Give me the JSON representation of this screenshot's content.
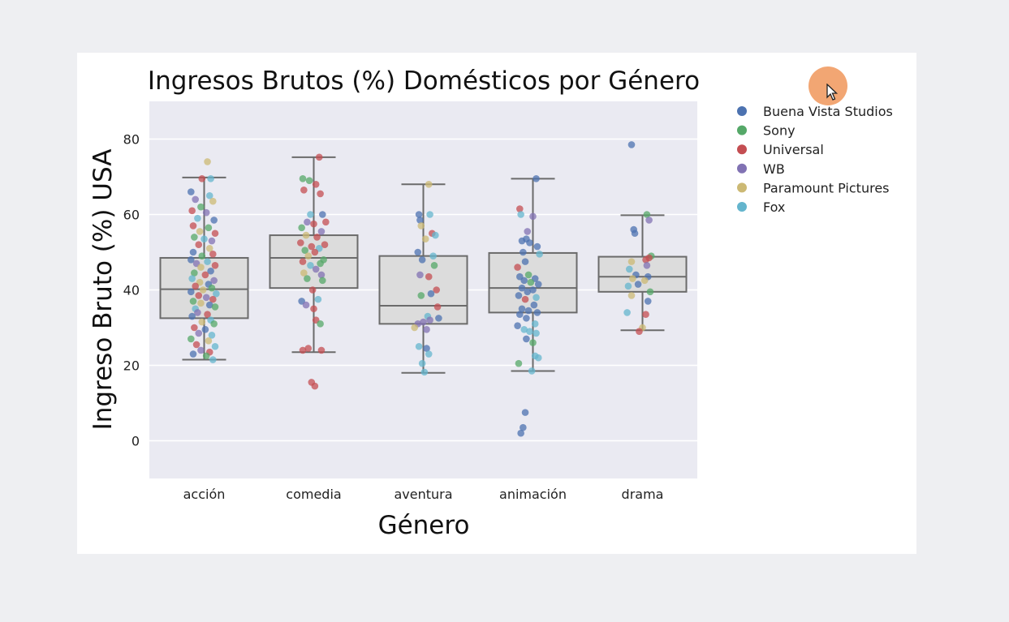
{
  "chart_data": {
    "type": "box+strip",
    "title": "Ingresos Brutos (%) Domésticos por Género",
    "xlabel": "Género",
    "ylabel": "Ingreso Bruto (%) USA",
    "categories": [
      "acción",
      "comedia",
      "aventura",
      "animación",
      "drama"
    ],
    "ylim": [
      -10,
      90
    ],
    "yticks": [
      0,
      20,
      40,
      60,
      80
    ],
    "grid": true,
    "legend": {
      "placement": "right",
      "entries": [
        {
          "name": "Buena Vista Studios",
          "color": "#4c72b0"
        },
        {
          "name": "Sony",
          "color": "#55a868"
        },
        {
          "name": "Universal",
          "color": "#c44e52"
        },
        {
          "name": "WB",
          "color": "#8172b3"
        },
        {
          "name": "Paramount Pictures",
          "color": "#ccb974"
        },
        {
          "name": "Fox",
          "color": "#64b5cd"
        }
      ]
    },
    "boxes": [
      {
        "category": "acción",
        "whisker_low": 21.5,
        "q1": 32.5,
        "median": 40.2,
        "q3": 48.5,
        "whisker_high": 69.8
      },
      {
        "category": "comedia",
        "whisker_low": 23.5,
        "q1": 40.5,
        "median": 48.5,
        "q3": 54.5,
        "whisker_high": 75.2
      },
      {
        "category": "aventura",
        "whisker_low": 18.0,
        "q1": 31.0,
        "median": 35.8,
        "q3": 49.0,
        "whisker_high": 68.0
      },
      {
        "category": "animación",
        "whisker_low": 18.5,
        "q1": 34.0,
        "median": 40.5,
        "q3": 49.8,
        "whisker_high": 69.5
      },
      {
        "category": "drama",
        "whisker_low": 29.3,
        "q1": 39.5,
        "median": 43.5,
        "q3": 48.8,
        "whisker_high": 59.8
      }
    ],
    "points": {
      "acción": [
        [
          -0.12,
          66.0,
          "Buena Vista Studios"
        ],
        [
          0.03,
          74.0,
          "Paramount Pictures"
        ],
        [
          -0.02,
          69.5,
          "Universal"
        ],
        [
          0.06,
          69.5,
          "Fox"
        ],
        [
          -0.08,
          64.0,
          "WB"
        ],
        [
          0.05,
          65.0,
          "Fox"
        ],
        [
          -0.03,
          62.0,
          "Sony"
        ],
        [
          0.08,
          63.5,
          "Paramount Pictures"
        ],
        [
          -0.11,
          61.0,
          "Universal"
        ],
        [
          0.02,
          60.5,
          "WB"
        ],
        [
          -0.06,
          59.0,
          "Fox"
        ],
        [
          0.09,
          58.5,
          "Buena Vista Studios"
        ],
        [
          -0.1,
          57.0,
          "Universal"
        ],
        [
          0.04,
          56.5,
          "Sony"
        ],
        [
          -0.04,
          55.5,
          "Paramount Pictures"
        ],
        [
          0.1,
          55.0,
          "Universal"
        ],
        [
          -0.09,
          54.0,
          "Sony"
        ],
        [
          0.0,
          53.5,
          "Fox"
        ],
        [
          0.07,
          53.0,
          "WB"
        ],
        [
          -0.05,
          52.0,
          "Universal"
        ],
        [
          0.05,
          51.0,
          "Paramount Pictures"
        ],
        [
          -0.1,
          50.0,
          "Buena Vista Studios"
        ],
        [
          0.08,
          49.5,
          "Universal"
        ],
        [
          -0.02,
          49.0,
          "Sony"
        ],
        [
          -0.12,
          48.0,
          "Buena Vista Studios"
        ],
        [
          0.03,
          47.5,
          "Fox"
        ],
        [
          -0.07,
          47.0,
          "WB"
        ],
        [
          0.1,
          46.5,
          "Universal"
        ],
        [
          -0.03,
          46.0,
          "Paramount Pictures"
        ],
        [
          0.06,
          45.0,
          "Buena Vista Studios"
        ],
        [
          -0.09,
          44.5,
          "Sony"
        ],
        [
          0.01,
          44.0,
          "Universal"
        ],
        [
          -0.11,
          43.0,
          "Fox"
        ],
        [
          0.09,
          42.5,
          "WB"
        ],
        [
          -0.04,
          42.0,
          "Paramount Pictures"
        ],
        [
          0.04,
          41.5,
          "Buena Vista Studios"
        ],
        [
          -0.08,
          41.0,
          "Universal"
        ],
        [
          0.07,
          40.5,
          "Sony"
        ],
        [
          -0.01,
          40.0,
          "Paramount Pictures"
        ],
        [
          -0.12,
          39.5,
          "Buena Vista Studios"
        ],
        [
          0.11,
          39.0,
          "Fox"
        ],
        [
          -0.05,
          38.5,
          "Universal"
        ],
        [
          0.02,
          38.0,
          "WB"
        ],
        [
          -0.1,
          37.0,
          "Sony"
        ],
        [
          0.08,
          37.5,
          "Universal"
        ],
        [
          -0.03,
          36.5,
          "Paramount Pictures"
        ],
        [
          0.05,
          36.0,
          "Buena Vista Studios"
        ],
        [
          -0.08,
          35.0,
          "Fox"
        ],
        [
          0.1,
          35.5,
          "Sony"
        ],
        [
          -0.06,
          34.0,
          "WB"
        ],
        [
          0.03,
          33.5,
          "Universal"
        ],
        [
          -0.11,
          33.0,
          "Buena Vista Studios"
        ],
        [
          0.06,
          32.0,
          "Fox"
        ],
        [
          -0.02,
          31.5,
          "Paramount Pictures"
        ],
        [
          0.09,
          31.0,
          "Sony"
        ],
        [
          -0.09,
          30.0,
          "Universal"
        ],
        [
          0.01,
          29.5,
          "Buena Vista Studios"
        ],
        [
          -0.05,
          28.5,
          "WB"
        ],
        [
          0.07,
          28.0,
          "Fox"
        ],
        [
          -0.12,
          27.0,
          "Sony"
        ],
        [
          0.04,
          26.5,
          "Paramount Pictures"
        ],
        [
          -0.07,
          25.5,
          "Universal"
        ],
        [
          0.1,
          25.0,
          "Fox"
        ],
        [
          -0.03,
          24.0,
          "WB"
        ],
        [
          0.05,
          23.5,
          "Universal"
        ],
        [
          -0.1,
          23.0,
          "Buena Vista Studios"
        ],
        [
          0.02,
          22.5,
          "Sony"
        ],
        [
          0.08,
          21.5,
          "Fox"
        ]
      ],
      "comedia": [
        [
          0.05,
          75.2,
          "Universal"
        ],
        [
          -0.1,
          69.5,
          "Sony"
        ],
        [
          -0.04,
          69.0,
          "Sony"
        ],
        [
          0.02,
          68.0,
          "Universal"
        ],
        [
          -0.09,
          66.5,
          "Universal"
        ],
        [
          0.06,
          65.5,
          "Universal"
        ],
        [
          -0.03,
          60.0,
          "Fox"
        ],
        [
          0.08,
          60.0,
          "Buena Vista Studios"
        ],
        [
          0.11,
          58.0,
          "Universal"
        ],
        [
          -0.06,
          58.0,
          "WB"
        ],
        [
          0.0,
          57.5,
          "Universal"
        ],
        [
          -0.11,
          56.5,
          "Sony"
        ],
        [
          0.07,
          55.5,
          "WB"
        ],
        [
          -0.07,
          54.5,
          "Paramount Pictures"
        ],
        [
          0.03,
          54.0,
          "Universal"
        ],
        [
          -0.12,
          52.5,
          "Universal"
        ],
        [
          0.1,
          52.0,
          "Universal"
        ],
        [
          -0.02,
          51.5,
          "Universal"
        ],
        [
          0.05,
          51.0,
          "Fox"
        ],
        [
          -0.08,
          50.5,
          "Sony"
        ],
        [
          0.01,
          50.0,
          "Universal"
        ],
        [
          -0.05,
          49.0,
          "Paramount Pictures"
        ],
        [
          0.09,
          48.0,
          "Sony"
        ],
        [
          -0.1,
          47.5,
          "Universal"
        ],
        [
          0.06,
          47.0,
          "Sony"
        ],
        [
          -0.03,
          46.5,
          "Fox"
        ],
        [
          0.02,
          45.5,
          "WB"
        ],
        [
          -0.09,
          44.5,
          "Paramount Pictures"
        ],
        [
          0.07,
          44.0,
          "WB"
        ],
        [
          -0.06,
          43.0,
          "Sony"
        ],
        [
          0.08,
          42.5,
          "Sony"
        ],
        [
          -0.01,
          40.0,
          "Universal"
        ],
        [
          0.04,
          37.5,
          "Fox"
        ],
        [
          -0.11,
          37.0,
          "Buena Vista Studios"
        ],
        [
          -0.07,
          36.0,
          "WB"
        ],
        [
          0.0,
          35.0,
          "Universal"
        ],
        [
          0.02,
          32.0,
          "Universal"
        ],
        [
          0.06,
          31.0,
          "Sony"
        ],
        [
          -0.1,
          24.0,
          "Universal"
        ],
        [
          -0.05,
          24.5,
          "Universal"
        ],
        [
          0.07,
          24.0,
          "Universal"
        ],
        [
          -0.02,
          15.5,
          "Universal"
        ],
        [
          0.01,
          14.5,
          "Universal"
        ]
      ],
      "aventura": [
        [
          0.05,
          68.0,
          "Paramount Pictures"
        ],
        [
          -0.04,
          60.0,
          "Buena Vista Studios"
        ],
        [
          0.06,
          60.0,
          "Fox"
        ],
        [
          -0.03,
          58.5,
          "Buena Vista Studios"
        ],
        [
          -0.02,
          57.0,
          "Paramount Pictures"
        ],
        [
          0.08,
          55.0,
          "Universal"
        ],
        [
          0.11,
          54.5,
          "Fox"
        ],
        [
          0.02,
          53.5,
          "Paramount Pictures"
        ],
        [
          -0.05,
          50.0,
          "Buena Vista Studios"
        ],
        [
          0.09,
          49.0,
          "Fox"
        ],
        [
          -0.01,
          48.0,
          "Buena Vista Studios"
        ],
        [
          0.1,
          46.5,
          "Sony"
        ],
        [
          -0.03,
          44.0,
          "WB"
        ],
        [
          0.05,
          43.5,
          "Universal"
        ],
        [
          0.12,
          40.0,
          "Universal"
        ],
        [
          0.07,
          39.0,
          "Buena Vista Studios"
        ],
        [
          -0.02,
          38.5,
          "Sony"
        ],
        [
          0.13,
          35.5,
          "Universal"
        ],
        [
          0.04,
          33.0,
          "Fox"
        ],
        [
          0.14,
          32.5,
          "Buena Vista Studios"
        ],
        [
          -0.05,
          31.0,
          "WB"
        ],
        [
          0.0,
          31.5,
          "WB"
        ],
        [
          0.06,
          32.0,
          "WB"
        ],
        [
          -0.08,
          30.0,
          "Paramount Pictures"
        ],
        [
          0.03,
          29.5,
          "WB"
        ],
        [
          -0.04,
          25.0,
          "Fox"
        ],
        [
          0.03,
          24.5,
          "Buena Vista Studios"
        ],
        [
          0.05,
          23.0,
          "Fox"
        ],
        [
          -0.01,
          20.5,
          "Fox"
        ],
        [
          0.01,
          18.2,
          "Fox"
        ]
      ],
      "animación": [
        [
          0.03,
          69.5,
          "Buena Vista Studios"
        ],
        [
          -0.12,
          61.5,
          "Universal"
        ],
        [
          -0.11,
          60.0,
          "Fox"
        ],
        [
          0.0,
          59.5,
          "WB"
        ],
        [
          -0.05,
          55.5,
          "WB"
        ],
        [
          -0.1,
          53.0,
          "Buena Vista Studios"
        ],
        [
          -0.06,
          53.5,
          "Buena Vista Studios"
        ],
        [
          -0.03,
          52.5,
          "Buena Vista Studios"
        ],
        [
          0.04,
          51.5,
          "Buena Vista Studios"
        ],
        [
          -0.09,
          50.0,
          "Buena Vista Studios"
        ],
        [
          0.06,
          49.5,
          "Fox"
        ],
        [
          -0.07,
          47.5,
          "Buena Vista Studios"
        ],
        [
          -0.14,
          46.0,
          "Universal"
        ],
        [
          -0.04,
          44.0,
          "Sony"
        ],
        [
          0.02,
          43.0,
          "Buena Vista Studios"
        ],
        [
          -0.12,
          43.5,
          "Buena Vista Studios"
        ],
        [
          -0.08,
          42.5,
          "Buena Vista Studios"
        ],
        [
          -0.02,
          42.0,
          "Sony"
        ],
        [
          0.05,
          41.5,
          "Buena Vista Studios"
        ],
        [
          -0.1,
          40.5,
          "Buena Vista Studios"
        ],
        [
          0.0,
          40.0,
          "Buena Vista Studios"
        ],
        [
          -0.05,
          39.5,
          "Buena Vista Studios"
        ],
        [
          -0.13,
          38.5,
          "Buena Vista Studios"
        ],
        [
          0.03,
          38.0,
          "Fox"
        ],
        [
          -0.07,
          37.5,
          "Universal"
        ],
        [
          0.01,
          36.0,
          "Buena Vista Studios"
        ],
        [
          -0.1,
          35.0,
          "Buena Vista Studios"
        ],
        [
          -0.04,
          34.5,
          "Buena Vista Studios"
        ],
        [
          0.04,
          34.0,
          "Buena Vista Studios"
        ],
        [
          -0.12,
          33.5,
          "Buena Vista Studios"
        ],
        [
          -0.06,
          32.5,
          "Buena Vista Studios"
        ],
        [
          0.02,
          31.0,
          "Fox"
        ],
        [
          -0.14,
          30.5,
          "Buena Vista Studios"
        ],
        [
          -0.08,
          29.5,
          "Fox"
        ],
        [
          -0.03,
          29.0,
          "Fox"
        ],
        [
          0.03,
          28.5,
          "Fox"
        ],
        [
          -0.06,
          27.0,
          "Buena Vista Studios"
        ],
        [
          0.0,
          26.0,
          "Sony"
        ],
        [
          0.02,
          22.5,
          "Fox"
        ],
        [
          0.05,
          22.0,
          "Fox"
        ],
        [
          -0.13,
          20.5,
          "Sony"
        ],
        [
          -0.01,
          18.5,
          "Fox"
        ],
        [
          -0.07,
          7.5,
          "Buena Vista Studios"
        ],
        [
          -0.09,
          3.5,
          "Buena Vista Studios"
        ],
        [
          -0.11,
          2.0,
          "Buena Vista Studios"
        ]
      ],
      "drama": [
        [
          -0.1,
          78.5,
          "Buena Vista Studios"
        ],
        [
          0.04,
          60.0,
          "Sony"
        ],
        [
          0.06,
          58.5,
          "WB"
        ],
        [
          -0.08,
          56.0,
          "Buena Vista Studios"
        ],
        [
          -0.07,
          55.0,
          "Buena Vista Studios"
        ],
        [
          0.08,
          49.0,
          "Sony"
        ],
        [
          0.06,
          48.5,
          "Universal"
        ],
        [
          -0.1,
          47.5,
          "Paramount Pictures"
        ],
        [
          0.03,
          48.0,
          "Universal"
        ],
        [
          0.04,
          46.5,
          "WB"
        ],
        [
          -0.12,
          45.5,
          "Fox"
        ],
        [
          -0.06,
          44.0,
          "Buena Vista Studios"
        ],
        [
          0.05,
          43.5,
          "Buena Vista Studios"
        ],
        [
          -0.09,
          43.0,
          "Paramount Pictures"
        ],
        [
          0.02,
          42.5,
          "Paramount Pictures"
        ],
        [
          -0.13,
          41.0,
          "Fox"
        ],
        [
          -0.04,
          41.5,
          "Buena Vista Studios"
        ],
        [
          0.07,
          39.5,
          "Sony"
        ],
        [
          -0.1,
          38.5,
          "Paramount Pictures"
        ],
        [
          0.05,
          37.0,
          "Buena Vista Studios"
        ],
        [
          -0.14,
          34.0,
          "Fox"
        ],
        [
          0.03,
          33.5,
          "Universal"
        ],
        [
          0.0,
          30.0,
          "Paramount Pictures"
        ],
        [
          -0.03,
          29.0,
          "Universal"
        ]
      ]
    }
  }
}
